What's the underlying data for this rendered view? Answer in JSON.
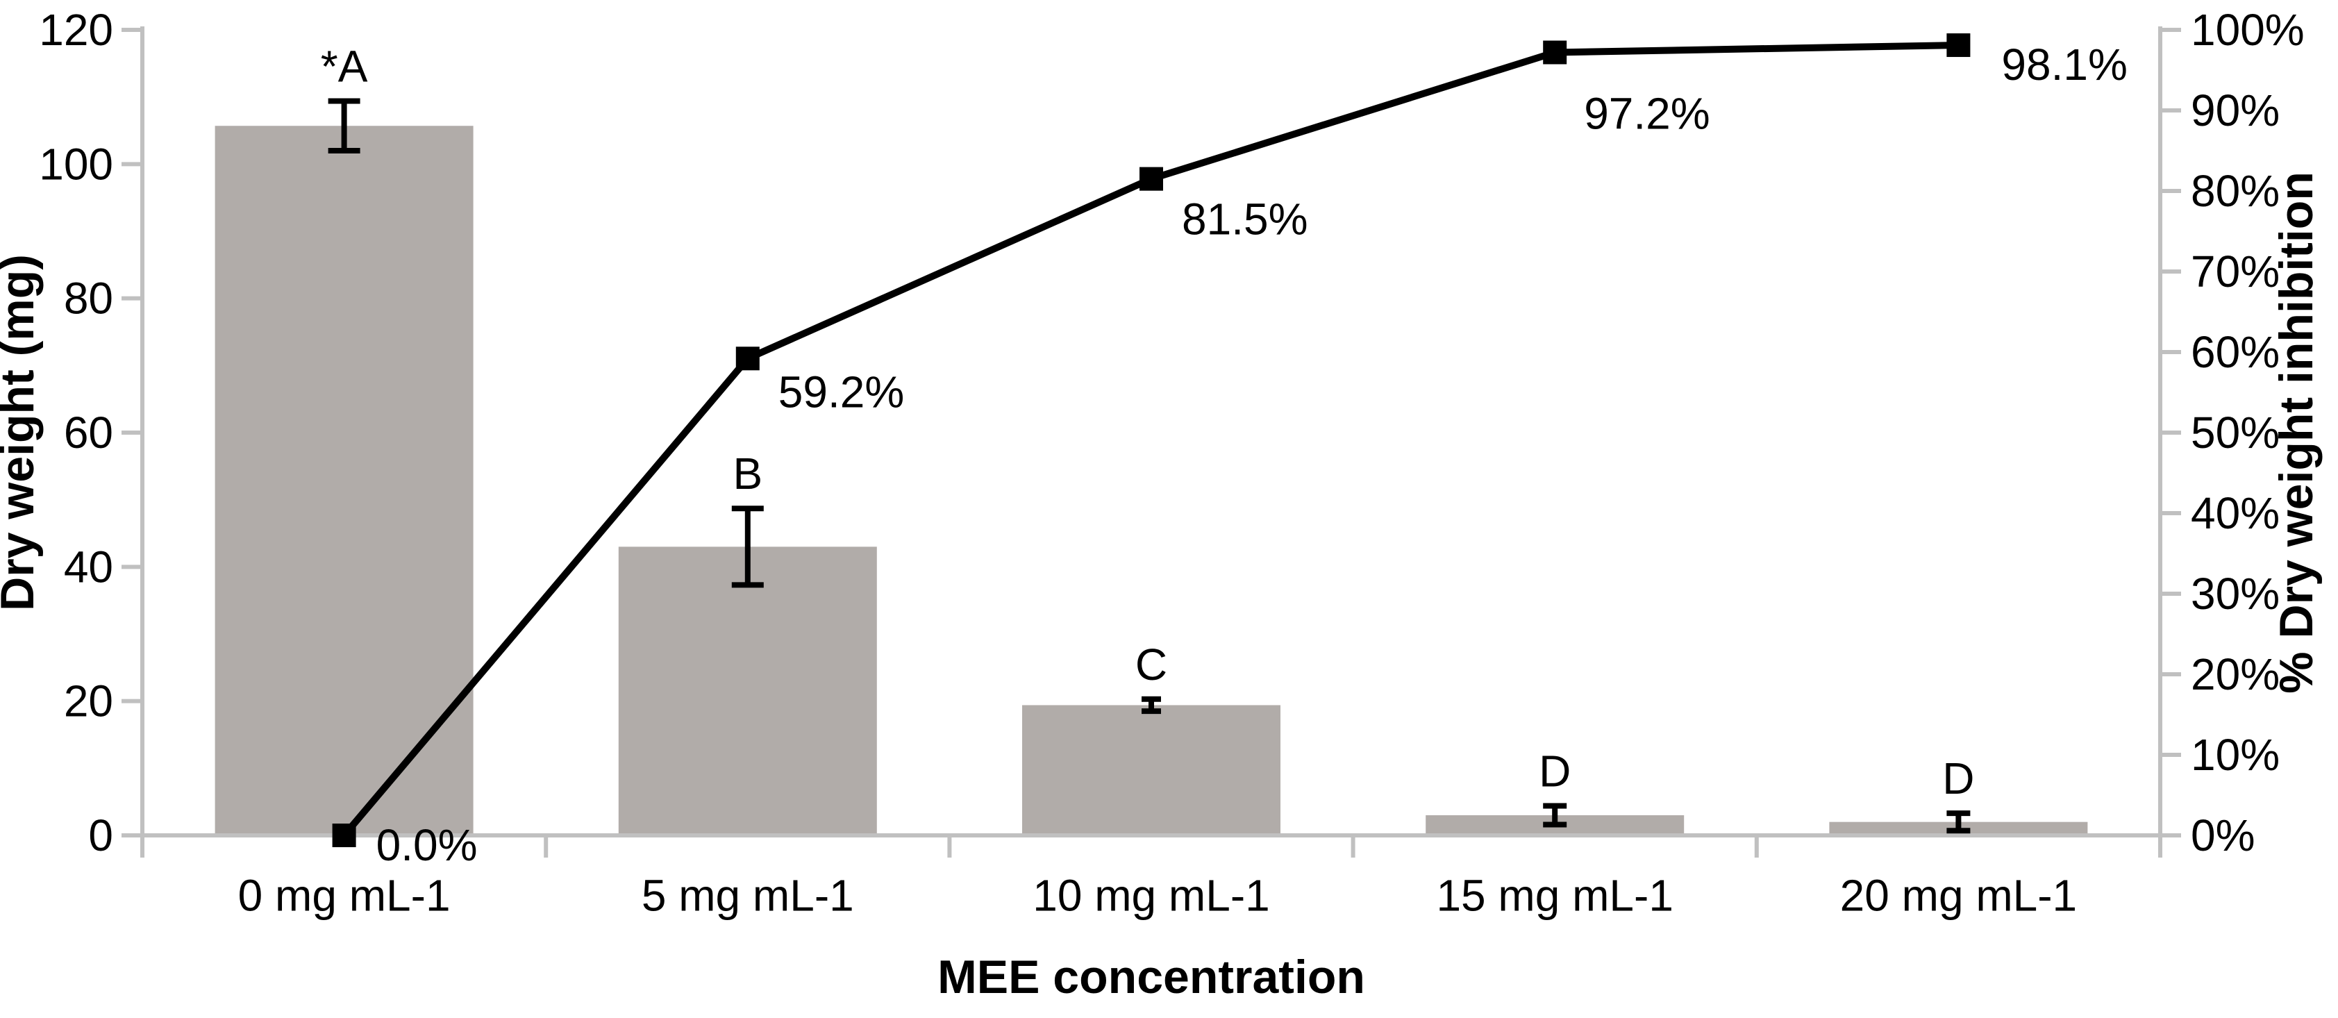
{
  "colors": {
    "bar_fill": "#b1aca9",
    "axis_line": "#c0c0c0",
    "series_line": "#000000",
    "text": "#000000",
    "background": "#ffffff"
  },
  "chart_data": {
    "type": "bar-line-combo",
    "title": "",
    "categories": [
      "0 mg mL-1",
      "5 mg mL-1",
      "10 mg mL-1",
      "15 mg mL-1",
      "20 mg mL-1"
    ],
    "series": [
      {
        "name": "Dry weight",
        "type": "bar",
        "axis": "left",
        "values": [
          105.7,
          43.0,
          19.4,
          3.0,
          2.0
        ],
        "error_bars": [
          3.7,
          5.7,
          0.9,
          1.4,
          1.3
        ],
        "significance_letters": [
          "*A",
          "B",
          "C",
          "D",
          "D"
        ]
      },
      {
        "name": "% Dry weight inhibition",
        "type": "line",
        "axis": "right",
        "marker": "filled-square",
        "values_percent": [
          0.0,
          59.2,
          81.5,
          97.2,
          98.1
        ],
        "data_labels": [
          "0.0%",
          "59.2%",
          "81.5%",
          "97.2%",
          "98.1%"
        ]
      }
    ],
    "left_axis": {
      "label": "Dry weight (mg)",
      "min": 0,
      "max": 120,
      "step": 20,
      "tick_labels": [
        "0",
        "20",
        "40",
        "60",
        "80",
        "100",
        "120"
      ]
    },
    "right_axis": {
      "label": "% Dry weight inhibition",
      "min": 0,
      "max": 100,
      "step": 10,
      "tick_labels": [
        "0%",
        "10%",
        "20%",
        "30%",
        "40%",
        "50%",
        "60%",
        "70%",
        "80%",
        "90%",
        "100%"
      ]
    },
    "x_axis": {
      "label": "MEE concentration"
    },
    "grid": false,
    "legend": false
  }
}
